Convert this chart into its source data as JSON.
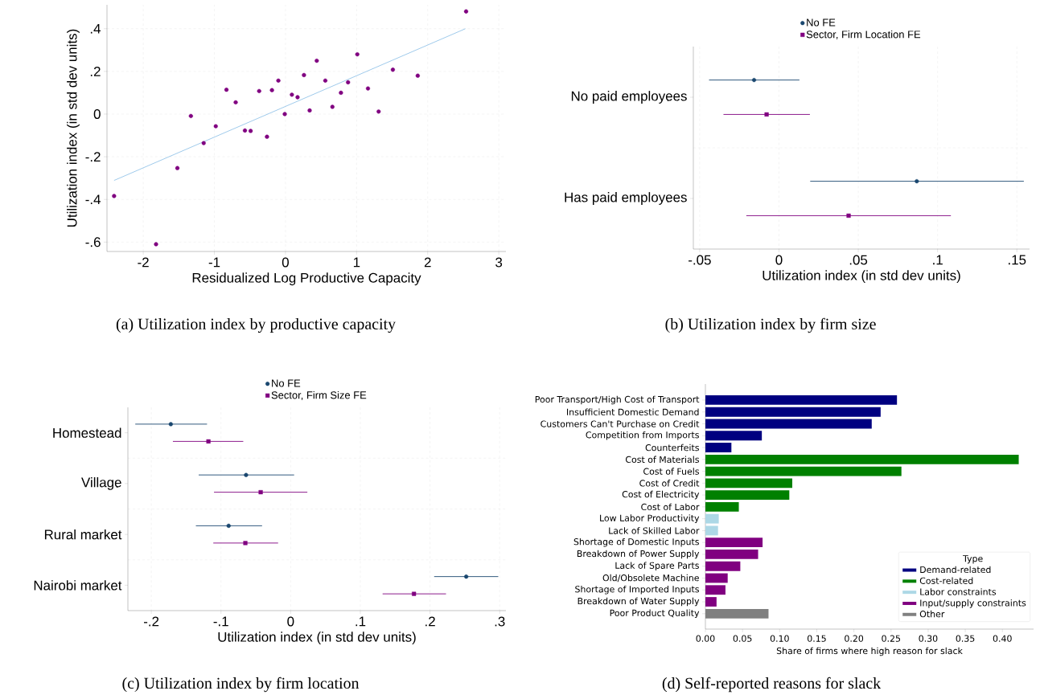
{
  "chart_data": [
    {
      "type": "scatter",
      "xlabel": "Residualized Log Productive Capacity",
      "ylabel": "Utilization index (in std dev units)",
      "annotations": [
        "(a) Utilization index by productive capacity"
      ],
      "xlim": [
        -2.51,
        3.1
      ],
      "ylim": [
        -0.644,
        0.512
      ],
      "xticks": [
        -2,
        -1,
        0,
        1,
        2,
        3
      ],
      "yticks": [
        {
          "value": -0.6,
          "label": "-.6"
        },
        {
          "value": -0.4,
          "label": "-.4"
        },
        {
          "value": -0.2,
          "label": "-.2"
        },
        0,
        {
          "value": 0.2,
          "label": ".2"
        },
        {
          "value": 0.4,
          "label": ".4"
        }
      ],
      "grid": true,
      "series": [
        {
          "color": "#800080",
          "marker": "circle",
          "x": [
            -2.41,
            -1.82,
            -1.52,
            -1.33,
            -1.15,
            -0.98,
            -0.83,
            -0.7,
            -0.57,
            -0.49,
            -0.37,
            -0.26,
            -0.19,
            -0.1,
            -0.01,
            0.09,
            0.17,
            0.26,
            0.34,
            0.44,
            0.56,
            0.66,
            0.78,
            0.88,
            1.01,
            1.16,
            1.31,
            1.51,
            1.86,
            2.54
          ],
          "values": [
            -0.384,
            -0.61,
            -0.253,
            -0.009,
            -0.136,
            -0.057,
            0.114,
            0.055,
            -0.077,
            -0.079,
            0.108,
            -0.106,
            0.112,
            0.157,
            0.0,
            0.091,
            0.079,
            0.183,
            0.017,
            0.25,
            0.157,
            0.034,
            0.1,
            0.149,
            0.28,
            0.12,
            0.012,
            0.208,
            0.18,
            0.481
          ]
        },
        {
          "type": "line",
          "color": "#87bde6",
          "x": [
            -2.41,
            2.53
          ],
          "values": [
            -0.311,
            0.4
          ]
        }
      ]
    },
    {
      "type": "scatter",
      "orientation": "horizontal",
      "categories": [
        "No paid employees",
        "Has paid employees"
      ],
      "xlabel": "Utilization index (in std dev units)",
      "annotations": [
        "(b) Utilization index by firm size"
      ],
      "xlim": [
        -0.054,
        0.158
      ],
      "xticks": [
        {
          "value": -0.05,
          "label": "-.05"
        },
        0,
        {
          "value": 0.05,
          "label": ".05"
        },
        {
          "value": 0.1,
          "label": ".1"
        },
        {
          "value": 0.15,
          "label": ".15"
        }
      ],
      "grid": true,
      "legend": "top",
      "series": [
        {
          "name": "No FE",
          "color": "#1a476f",
          "marker": "circle",
          "values": [
            -0.0157,
            0.0869
          ],
          "errors": [
            [
              -0.0441,
              0.0129
            ],
            [
              0.0197,
              0.1544
            ]
          ]
        },
        {
          "name": "Sector, Firm Location FE",
          "color": "#800080",
          "marker": "square",
          "values": [
            -0.0078,
            0.0439
          ],
          "errors": [
            [
              -0.035,
              0.0195
            ],
            [
              -0.0206,
              0.1084
            ]
          ]
        }
      ]
    },
    {
      "type": "scatter",
      "orientation": "horizontal",
      "categories": [
        "Homestead",
        "Village",
        "Rural market",
        "Nairobi market"
      ],
      "xlabel": "Utilization index (in std dev units)",
      "annotations": [
        "(c) Utilization index by firm location"
      ],
      "xlim": [
        -0.2336,
        0.309
      ],
      "xticks": [
        {
          "value": -0.2,
          "label": "-.2"
        },
        {
          "value": -0.1,
          "label": "-.1"
        },
        0,
        {
          "value": 0.1,
          "label": ".1"
        },
        {
          "value": 0.2,
          "label": ".2"
        },
        {
          "value": 0.3,
          "label": ".3"
        }
      ],
      "grid": true,
      "legend": "top",
      "series": [
        {
          "name": "No FE",
          "color": "#1a476f",
          "marker": "circle",
          "values": [
            -0.172,
            -0.064,
            -0.089,
            0.252
          ],
          "errors": [
            [
              -0.223,
              -0.12
            ],
            [
              -0.132,
              0.005
            ],
            [
              -0.136,
              -0.041
            ],
            [
              0.206,
              0.298
            ]
          ]
        },
        {
          "name": "Sector, Firm Size FE",
          "color": "#800080",
          "marker": "square",
          "values": [
            -0.118,
            -0.043,
            -0.065,
            0.177
          ],
          "errors": [
            [
              -0.169,
              -0.068
            ],
            [
              -0.11,
              0.024
            ],
            [
              -0.111,
              -0.018
            ],
            [
              0.132,
              0.223
            ]
          ]
        }
      ]
    },
    {
      "type": "bar",
      "orientation": "horizontal",
      "stacked": true,
      "categories": [
        "Poor Transport/High Cost of Transport",
        "Insufficient Domestic Demand",
        "Customers Can't Purchase on Credit",
        "Competition from Imports",
        "Counterfeits",
        "Cost of Materials",
        "Cost of Fuels",
        "Cost of Credit",
        "Cost of Electricity",
        "Cost of Labor",
        "Low Labor Productivity",
        "Lack of Skilled Labor",
        "Shortage of Domestic Inputs",
        "Breakdown of Power Supply",
        "Lack of Spare Parts",
        "Old/Obsolete Machine",
        "Shortage of Imported Inputs",
        "Breakdown of Water Supply",
        "Poor Product Quality"
      ],
      "xlabel": "Share of firms where high reason for slack",
      "annotations": [
        "(d) Self-reported reasons for slack"
      ],
      "xlim": [
        0,
        0.442
      ],
      "xticks": [
        {
          "value": 0,
          "label": "0.00"
        },
        {
          "value": 0.05,
          "label": "0.05"
        },
        {
          "value": 0.1,
          "label": "0.10"
        },
        {
          "value": 0.15,
          "label": "0.15"
        },
        {
          "value": 0.2,
          "label": "0.20"
        },
        {
          "value": 0.25,
          "label": "0.25"
        },
        {
          "value": 0.3,
          "label": "0.30"
        },
        {
          "value": 0.35,
          "label": "0.35"
        },
        {
          "value": 0.4,
          "label": "0.40"
        }
      ],
      "legend": "bottom right",
      "legend_title": "Type",
      "series": [
        {
          "name": "Demand-related",
          "color": "#000080",
          "values": [
            0.258,
            0.236,
            0.224,
            0.076,
            0.035,
            null,
            null,
            null,
            null,
            null,
            null,
            null,
            null,
            null,
            null,
            null,
            null,
            null,
            null
          ]
        },
        {
          "name": "Cost-related",
          "color": "#008000",
          "values": [
            null,
            null,
            null,
            null,
            null,
            0.422,
            0.264,
            0.117,
            0.113,
            0.045,
            null,
            null,
            null,
            null,
            null,
            null,
            null,
            null,
            null
          ]
        },
        {
          "name": "Labor constraints",
          "color": "#add8e6",
          "values": [
            null,
            null,
            null,
            null,
            null,
            null,
            null,
            null,
            null,
            null,
            0.018,
            0.017,
            null,
            null,
            null,
            null,
            null,
            null,
            null
          ]
        },
        {
          "name": "Input/supply constraints",
          "color": "#800080",
          "values": [
            null,
            null,
            null,
            null,
            null,
            null,
            null,
            null,
            null,
            null,
            null,
            null,
            0.077,
            0.071,
            0.047,
            0.03,
            0.027,
            0.015,
            null
          ]
        },
        {
          "name": "Other",
          "color": "#808080",
          "values": [
            null,
            null,
            null,
            null,
            null,
            null,
            null,
            null,
            null,
            null,
            null,
            null,
            null,
            null,
            null,
            null,
            null,
            null,
            0.085
          ]
        }
      ]
    }
  ]
}
